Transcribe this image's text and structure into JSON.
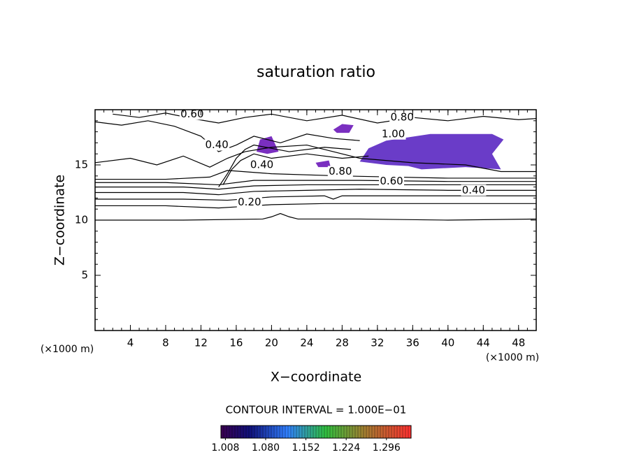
{
  "chart_data": {
    "type": "contour",
    "title": "saturation ratio",
    "x_label": "X−coordinate",
    "y_label": "Z−coordinate",
    "x_unit_label": "(×1000 m)",
    "y_unit_label": "(×1000 m)",
    "xlim": [
      0,
      50
    ],
    "ylim": [
      0,
      20
    ],
    "xticks": [
      4,
      8,
      12,
      16,
      20,
      24,
      28,
      32,
      36,
      40,
      44,
      48
    ],
    "yticks": [
      5,
      10,
      15
    ],
    "contours": [
      {
        "x": [
          0,
          10,
          19,
          20,
          21,
          22,
          23,
          30,
          40,
          50
        ],
        "y": [
          10,
          10,
          10.1,
          10.3,
          10.6,
          10.3,
          10.1,
          10.1,
          10,
          10.1
        ]
      },
      {
        "x": [
          0,
          8,
          14,
          16,
          20,
          26,
          30,
          40,
          50
        ],
        "y": [
          11.3,
          11.3,
          11.1,
          11.2,
          11.4,
          11.5,
          11.5,
          11.5,
          11.5
        ]
      },
      {
        "x": [
          0,
          10,
          15,
          20,
          26,
          27,
          28,
          35,
          50
        ],
        "y": [
          11.9,
          11.9,
          11.8,
          12.1,
          12.2,
          11.9,
          12.2,
          12.2,
          12.2
        ]
      },
      {
        "x": [
          0,
          10,
          14,
          18,
          24,
          30,
          40,
          50
        ],
        "y": [
          12.5,
          12.5,
          12.3,
          12.6,
          12.7,
          12.8,
          12.7,
          12.7
        ]
      },
      {
        "x": [
          0,
          10,
          14,
          18,
          24,
          30,
          40,
          50
        ],
        "y": [
          13.0,
          13.0,
          12.8,
          13.1,
          13.2,
          13.2,
          13.2,
          13.2
        ]
      },
      {
        "x": [
          0,
          8,
          14,
          18,
          24,
          30,
          40,
          50
        ],
        "y": [
          13.4,
          13.4,
          13.2,
          13.6,
          13.6,
          13.6,
          13.5,
          13.5
        ]
      },
      {
        "x": [
          0,
          8,
          13,
          15,
          20,
          28,
          40,
          50
        ],
        "y": [
          13.7,
          13.7,
          13.9,
          14.5,
          14.2,
          14.0,
          13.8,
          13.8
        ]
      },
      {
        "x": [
          0,
          4,
          7,
          10,
          13,
          15,
          17,
          20,
          24,
          30,
          36,
          42,
          46,
          50
        ],
        "y": [
          15.2,
          15.6,
          15.0,
          15.8,
          14.8,
          15.6,
          16.2,
          16.6,
          16.8,
          15.6,
          15.2,
          15.0,
          14.4,
          14.4
        ]
      },
      {
        "x": [
          0,
          3,
          6,
          9,
          12,
          14,
          16,
          18,
          21,
          24,
          27,
          30
        ],
        "y": [
          18.9,
          18.6,
          19.0,
          18.5,
          17.6,
          16.2,
          16.8,
          17.6,
          17.0,
          17.8,
          17.4,
          17.2
        ]
      },
      {
        "x": [
          2,
          5,
          8,
          11,
          14,
          17,
          20,
          24,
          28,
          32,
          36,
          40,
          44,
          48,
          50
        ],
        "y": [
          19.6,
          19.3,
          19.7,
          19.2,
          18.8,
          19.3,
          19.6,
          19.0,
          19.5,
          18.8,
          19.3,
          19.0,
          19.4,
          19.1,
          19.2
        ]
      },
      {
        "x": [
          14,
          15,
          16,
          17,
          18,
          22,
          26,
          29
        ],
        "y": [
          13.0,
          14.2,
          15.6,
          16.4,
          16.8,
          16.2,
          16.6,
          16.4
        ]
      },
      {
        "x": [
          14.5,
          15.5,
          16.5,
          18,
          20,
          24,
          28,
          31
        ],
        "y": [
          13.2,
          14.6,
          15.4,
          16.0,
          15.6,
          16.0,
          15.6,
          15.8
        ]
      }
    ],
    "regions": [
      {
        "color": "#6a3cc8",
        "x": [
          30,
          31,
          33,
          38,
          45,
          46.3,
          45,
          46,
          42,
          37,
          35.5,
          33,
          30
        ],
        "y": [
          15.3,
          16.5,
          17.2,
          17.8,
          17.8,
          17.3,
          16.0,
          14.6,
          14.8,
          14.6,
          14.9,
          15.0,
          15.3
        ]
      },
      {
        "color": "#7a2fc0",
        "x": [
          18.3,
          18.7,
          20.0,
          20.8,
          19.5
        ],
        "y": [
          16.2,
          17.3,
          17.6,
          16.2,
          16.0
        ]
      },
      {
        "color": "#7a2fc0",
        "x": [
          27.0,
          28.0,
          29.3,
          28.8,
          27.4
        ],
        "y": [
          18.2,
          18.7,
          18.6,
          17.9,
          17.9
        ]
      },
      {
        "color": "#7a2fc0",
        "x": [
          25.0,
          26.5,
          26.7,
          25.3
        ],
        "y": [
          15.2,
          15.4,
          14.8,
          14.8
        ]
      }
    ],
    "contour_labels": [
      {
        "text": "0.60",
        "x": 11.0,
        "y": 19.6
      },
      {
        "text": "0.80",
        "x": 34.8,
        "y": 19.3
      },
      {
        "text": "1.00",
        "x": 33.8,
        "y": 17.8
      },
      {
        "text": "0.40",
        "x": 13.8,
        "y": 16.8
      },
      {
        "text": "0.40",
        "x": 18.9,
        "y": 15.0
      },
      {
        "text": "0.80",
        "x": 27.8,
        "y": 14.4
      },
      {
        "text": "0.60",
        "x": 33.6,
        "y": 13.5
      },
      {
        "text": "0.40",
        "x": 42.9,
        "y": 12.7
      },
      {
        "text": "0.20",
        "x": 17.5,
        "y": 11.6
      }
    ],
    "contour_interval_text": "CONTOUR INTERVAL = 1.000E−01",
    "colorbar_lim": [
      1.0,
      1.34
    ],
    "colorbar_ticks": [
      {
        "value": 1.008,
        "label": "1.008"
      },
      {
        "value": 1.08,
        "label": "1.080"
      },
      {
        "value": 1.152,
        "label": "1.152"
      },
      {
        "value": 1.224,
        "label": "1.224"
      },
      {
        "value": 1.296,
        "label": "1.296"
      }
    ]
  }
}
